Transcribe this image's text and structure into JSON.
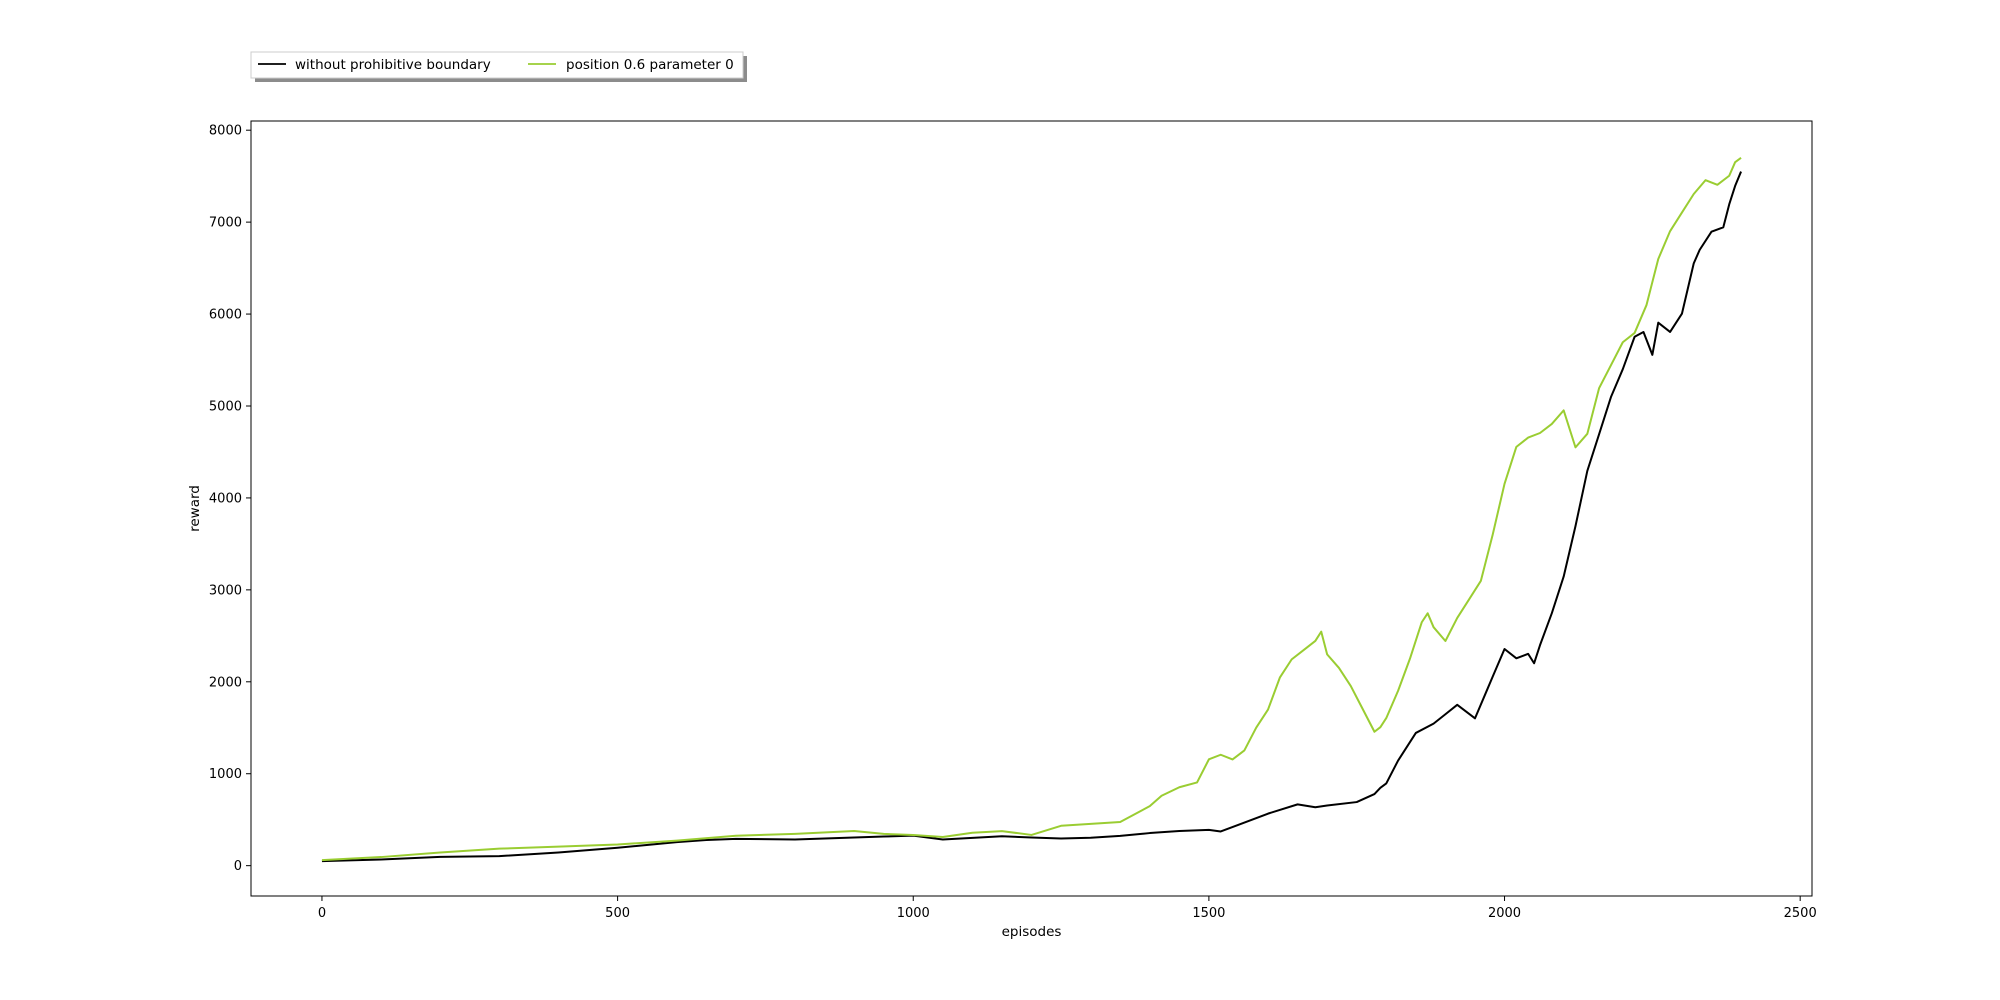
{
  "chart_data": {
    "type": "line",
    "title": "",
    "xlabel": "episodes",
    "ylabel": "reward",
    "xlim": [
      -120,
      2520
    ],
    "ylim": [
      -330,
      8100
    ],
    "xticks": [
      0,
      500,
      1000,
      1500,
      2000,
      2500
    ],
    "yticks": [
      0,
      1000,
      2000,
      3000,
      4000,
      5000,
      6000,
      7000,
      8000
    ],
    "grid": false,
    "legend": {
      "placement": "top-left, above plot",
      "columns": 2
    },
    "series": [
      {
        "name": "without prohibitive boundary",
        "color": "#000000",
        "x": [
          0,
          100,
          200,
          300,
          400,
          500,
          600,
          650,
          700,
          800,
          900,
          950,
          1000,
          1050,
          1100,
          1150,
          1200,
          1250,
          1300,
          1350,
          1400,
          1450,
          1500,
          1520,
          1550,
          1600,
          1650,
          1680,
          1700,
          1750,
          1780,
          1790,
          1800,
          1820,
          1850,
          1880,
          1900,
          1920,
          1950,
          1970,
          1980,
          2000,
          2020,
          2040,
          2050,
          2060,
          2080,
          2100,
          2120,
          2140,
          2160,
          2180,
          2200,
          2220,
          2235,
          2250,
          2260,
          2280,
          2300,
          2320,
          2330,
          2350,
          2370,
          2380,
          2390,
          2400
        ],
        "y": [
          50,
          70,
          100,
          110,
          150,
          200,
          260,
          280,
          290,
          280,
          300,
          310,
          320,
          280,
          300,
          320,
          310,
          300,
          310,
          330,
          360,
          380,
          390,
          370,
          440,
          560,
          660,
          630,
          650,
          690,
          780,
          850,
          900,
          1150,
          1450,
          1550,
          1650,
          1750,
          1600,
          1900,
          2050,
          2350,
          2250,
          2300,
          2200,
          2400,
          2750,
          3150,
          3700,
          4300,
          4700,
          5100,
          5400,
          5750,
          5800,
          5550,
          5900,
          5800,
          6000,
          6550,
          6700,
          6900,
          6950,
          7200,
          7400,
          7550
        ]
      },
      {
        "name": "position 0.6 parameter 0",
        "color": "#9acd32",
        "x": [
          0,
          100,
          200,
          300,
          400,
          500,
          600,
          700,
          800,
          900,
          950,
          1000,
          1050,
          1100,
          1150,
          1200,
          1250,
          1300,
          1350,
          1400,
          1420,
          1450,
          1480,
          1500,
          1520,
          1540,
          1560,
          1580,
          1600,
          1620,
          1640,
          1660,
          1680,
          1690,
          1700,
          1720,
          1740,
          1760,
          1780,
          1790,
          1800,
          1820,
          1840,
          1860,
          1870,
          1880,
          1900,
          1920,
          1940,
          1960,
          1980,
          2000,
          2020,
          2040,
          2060,
          2080,
          2100,
          2120,
          2140,
          2160,
          2180,
          2200,
          2220,
          2240,
          2260,
          2280,
          2300,
          2320,
          2340,
          2360,
          2380,
          2390,
          2400
        ],
        "y": [
          60,
          100,
          150,
          190,
          210,
          230,
          270,
          320,
          340,
          370,
          340,
          330,
          310,
          360,
          380,
          340,
          440,
          460,
          480,
          650,
          760,
          850,
          900,
          1150,
          1200,
          1150,
          1250,
          1500,
          1700,
          2050,
          2250,
          2350,
          2450,
          2550,
          2300,
          2150,
          1950,
          1700,
          1450,
          1500,
          1600,
          1900,
          2250,
          2650,
          2750,
          2600,
          2450,
          2700,
          2900,
          3100,
          3600,
          4150,
          4550,
          4650,
          4700,
          4800,
          4950,
          4550,
          4700,
          5200,
          5450,
          5700,
          5800,
          6100,
          6600,
          6900,
          7100,
          7300,
          7450,
          7400,
          7500,
          7650,
          7700
        ]
      }
    ]
  }
}
